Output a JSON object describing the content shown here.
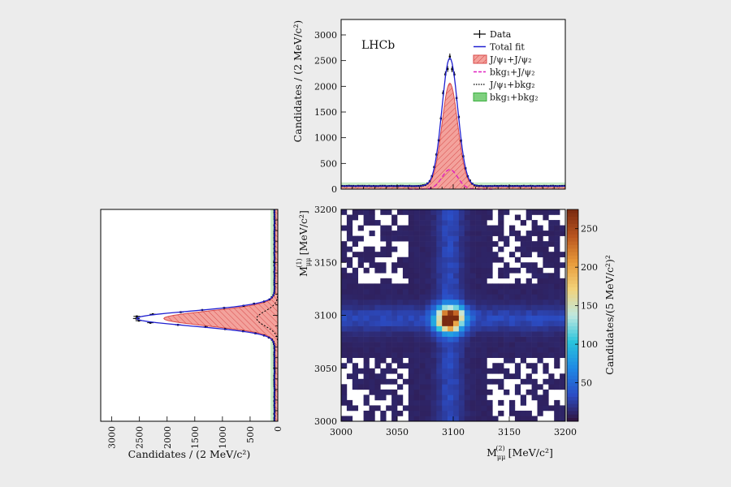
{
  "chart_data": [
    {
      "type": "line",
      "experiment_label": "LHCb",
      "xlim": [
        3000,
        3200
      ],
      "ylim": [
        0,
        3300
      ],
      "yticks": [
        0,
        500,
        1000,
        1500,
        2000,
        2500,
        3000
      ],
      "ylabel": "Candidates / (2 MeV/c²)",
      "legend_position": "top-right",
      "legend": [
        {
          "key": "data",
          "label": "Data",
          "symbol": "errorbar",
          "color": "#000000"
        },
        {
          "key": "total",
          "label": "Total fit",
          "symbol": "line",
          "color": "#2020d0"
        },
        {
          "key": "jj",
          "label": "J/ψ₁+J/ψ₂",
          "symbol": "hatched-box",
          "color": "#f08080"
        },
        {
          "key": "bkg1j",
          "label": "bkg₁+J/ψ₂",
          "symbol": "dashed",
          "color": "#e020c0"
        },
        {
          "key": "jbkg2",
          "label": "J/ψ₁+bkg₂",
          "symbol": "dotted",
          "color": "#000000"
        },
        {
          "key": "bb",
          "label": "bkg₁+bkg₂",
          "symbol": "box",
          "color": "#3cb040"
        }
      ],
      "peak_position": 3097,
      "total_fit_peak": 2550,
      "signal_peak": 2000,
      "bkg1_jpsi2_peak": 380,
      "combinatorial_level": 60,
      "flat_background_level": 130,
      "peak_width": 7
    },
    {
      "type": "line",
      "orientation": "horizontal",
      "xlim": [
        3200,
        0
      ],
      "xticks": [
        3000,
        2500,
        2000,
        1500,
        1000,
        500,
        0
      ],
      "xlabel": "Candidates / (2 MeV/c²)",
      "ylim": [
        3000,
        3200
      ],
      "total_fit_peak": 2550,
      "signal_peak": 2000,
      "jpsi1_bkg2_peak": 380,
      "peak_position": 3097
    },
    {
      "type": "heatmap",
      "xlim": [
        3000,
        3200
      ],
      "ylim": [
        3000,
        3200
      ],
      "xticks": [
        3000,
        3050,
        3100,
        3150,
        3200
      ],
      "yticks": [
        3000,
        3050,
        3100,
        3150,
        3200
      ],
      "xlabel_main": "M",
      "xlabel_sub": "μμ",
      "xlabel_sup": "(2)",
      "xlabel_unit": "[MeV/c²]",
      "ylabel_main": "M",
      "ylabel_sub": "μμ",
      "ylabel_sup": "(1)",
      "ylabel_unit": "[MeV/c²]",
      "bin_width": 5,
      "peak": [
        3097,
        3097
      ],
      "peak_value": 270,
      "colorbar_range": [
        0,
        275
      ],
      "colorbar_ticks": [
        50,
        100,
        150,
        200,
        250
      ],
      "colorbar_label": "Candidates/(5 MeV/c²)²",
      "colormap": [
        "#30123b",
        "#2b4cc4",
        "#1e88e5",
        "#29c3dc",
        "#bfe8e0",
        "#f2d27a",
        "#e89a3a",
        "#b8551f",
        "#7a2a10"
      ]
    }
  ]
}
